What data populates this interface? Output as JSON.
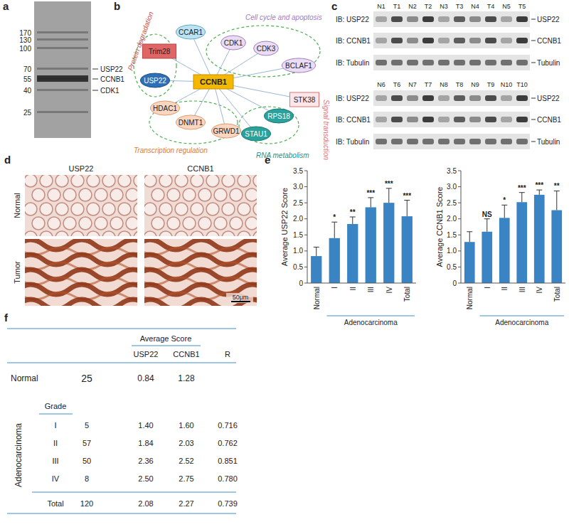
{
  "panel_labels": [
    "a",
    "b",
    "c",
    "d",
    "e",
    "f"
  ],
  "gel": {
    "markers": [
      170,
      130,
      100,
      70,
      55,
      40,
      25
    ],
    "bands": [
      "USP22",
      "CCNB1",
      "CDK1"
    ]
  },
  "network": {
    "center": "CCNB1",
    "nodes": [
      "CCAR1",
      "CDK1",
      "CDK3",
      "BCLAF1",
      "STK38",
      "RPS18",
      "STAU1",
      "GRWD1",
      "DNMT1",
      "HDAC1",
      "USP22",
      "Trim28"
    ],
    "groups": [
      "Protein degradation",
      "Cell cycle and apoptosis",
      "Signal transduction",
      "RNA metabolism",
      "Transcription regulation"
    ]
  },
  "western": {
    "lanes": [
      [
        "N1",
        "T1",
        "N2",
        "T2",
        "N3",
        "T3",
        "N4",
        "T4",
        "N5",
        "T5"
      ],
      [
        "N6",
        "T6",
        "N7",
        "T7",
        "N8",
        "T8",
        "N9",
        "T9",
        "N10",
        "T10"
      ]
    ],
    "blots": [
      "IB: USP22",
      "IB: CCNB1",
      "IB: Tubulin"
    ],
    "proteins": [
      "USP22",
      "CCNB1",
      "Tubulin"
    ]
  },
  "ihc": {
    "columns": [
      "USP22",
      "CCNB1"
    ],
    "rows": [
      "Normal",
      "Tumor"
    ],
    "scale_bar": "50μm"
  },
  "chart_data": [
    {
      "type": "bar",
      "y_label": "Average USP22 Score",
      "categories": [
        "Normal",
        "I",
        "II",
        "III",
        "IV",
        "Total"
      ],
      "group_label": "Adenocarcinoma",
      "values": [
        0.84,
        1.4,
        1.84,
        2.36,
        2.5,
        2.08
      ],
      "errors": [
        0.28,
        0.5,
        0.22,
        0.3,
        0.45,
        0.5
      ],
      "significance": [
        null,
        "*",
        "**",
        "***",
        "***",
        "***"
      ],
      "color": "#3a84c4",
      "ylim": [
        0,
        3.5
      ],
      "yticks": [
        0,
        0.5,
        {
          "value": 1,
          "label": "1.0"
        },
        1.5,
        {
          "value": 2,
          "label": "2.0"
        },
        2.5,
        {
          "value": 3,
          "label": "3.0"
        },
        3.5
      ]
    },
    {
      "type": "bar",
      "y_label": "Average CCNB1 Score",
      "categories": [
        "Normal",
        "I",
        "II",
        "III",
        "IV",
        "Total"
      ],
      "group_label": "Adenocarcinoma",
      "values": [
        1.28,
        1.6,
        2.03,
        2.52,
        2.75,
        2.27
      ],
      "errors": [
        0.32,
        0.4,
        0.4,
        0.3,
        0.15,
        0.6
      ],
      "significance": [
        null,
        "NS",
        "*",
        "***",
        "***",
        "**"
      ],
      "color": "#3a84c4",
      "ylim": [
        0,
        3.5
      ],
      "yticks": [
        0,
        0.5,
        {
          "value": 1,
          "label": "1.0"
        },
        1.5,
        {
          "value": 2,
          "label": "2.0"
        },
        2.5,
        {
          "value": 3,
          "label": "3.0"
        },
        3.5
      ]
    }
  ],
  "table": {
    "header": "Average Score",
    "columns": [
      "USP22",
      "CCNB1",
      "R"
    ],
    "normal": [
      "Normal",
      "25",
      "0.84",
      "1.28"
    ],
    "group": "Adenocarcinoma",
    "grade_header": "Grade",
    "rows": [
      [
        "I",
        "5",
        "1.40",
        "1.60",
        "0.716"
      ],
      [
        "II",
        "57",
        "1.84",
        "2.03",
        "0.762"
      ],
      [
        "III",
        "50",
        "2.36",
        "2.52",
        "0.851"
      ],
      [
        "IV",
        "8",
        "2.50",
        "2.75",
        "0.780"
      ]
    ],
    "total": [
      "Total",
      "120",
      "2.08",
      "2.27",
      "0.739"
    ]
  }
}
